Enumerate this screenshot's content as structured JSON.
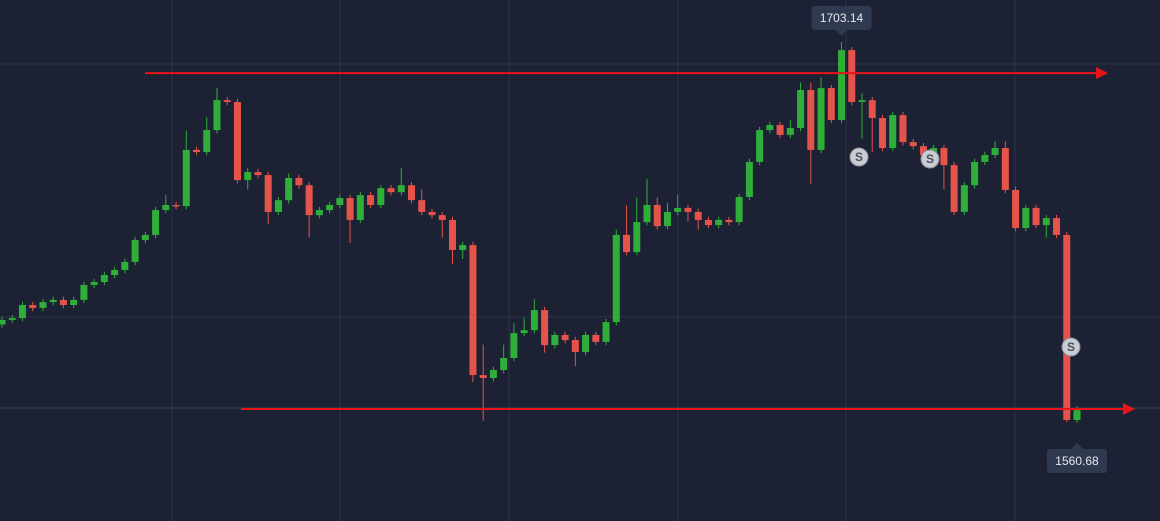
{
  "chart_data": {
    "type": "candlestick",
    "open": [
      1597.5,
      1599.2,
      1599.9,
      1604.8,
      1603.7,
      1605.9,
      1606.7,
      1604.8,
      1606.7,
      1612.3,
      1613.4,
      1616.0,
      1617.9,
      1620.9,
      1629.1,
      1631.0,
      1640.3,
      1642.2,
      1641.8,
      1662.8,
      1662.0,
      1670.2,
      1681.4,
      1680.7,
      1651.5,
      1654.5,
      1653.4,
      1639.6,
      1644.0,
      1652.3,
      1649.6,
      1638.4,
      1640.3,
      1642.2,
      1644.8,
      1636.6,
      1645.9,
      1642.2,
      1648.5,
      1647.0,
      1649.6,
      1644.0,
      1639.6,
      1638.4,
      1636.6,
      1625.4,
      1627.2,
      1578.6,
      1577.5,
      1580.5,
      1585.0,
      1594.3,
      1595.4,
      1602.9,
      1589.8,
      1593.6,
      1591.7,
      1587.2,
      1593.6,
      1591.0,
      1598.4,
      1631.0,
      1624.6,
      1635.8,
      1642.2,
      1634.3,
      1639.6,
      1641.1,
      1639.6,
      1636.6,
      1634.7,
      1636.6,
      1635.8,
      1645.2,
      1658.3,
      1670.2,
      1672.1,
      1668.4,
      1671.0,
      1685.2,
      1662.8,
      1685.9,
      1674.0,
      1700.1,
      1680.7,
      1681.4,
      1674.7,
      1663.5,
      1675.8,
      1665.7,
      1664.2,
      1660.9,
      1663.5,
      1657.1,
      1639.6,
      1649.6,
      1658.3,
      1660.9,
      1663.5,
      1647.8,
      1633.6,
      1641.1,
      1634.7,
      1637.3,
      1631.0,
      1561.8
    ],
    "high": [
      1600.4,
      1601.1,
      1606.0,
      1606.0,
      1607.1,
      1607.9,
      1607.9,
      1607.9,
      1613.5,
      1614.6,
      1617.2,
      1619.1,
      1622.1,
      1630.3,
      1632.2,
      1641.5,
      1646.0,
      1643.4,
      1670.0,
      1664.0,
      1675.0,
      1686.0,
      1682.6,
      1681.9,
      1656.0,
      1655.7,
      1654.6,
      1645.2,
      1654.0,
      1653.5,
      1650.8,
      1641.5,
      1643.4,
      1646.0,
      1646.0,
      1647.1,
      1647.1,
      1649.7,
      1649.7,
      1656.0,
      1650.8,
      1648.0,
      1640.8,
      1639.6,
      1637.8,
      1628.4,
      1628.4,
      1590.0,
      1581.7,
      1590.0,
      1598.0,
      1600.0,
      1607.0,
      1604.1,
      1594.8,
      1594.8,
      1592.9,
      1594.8,
      1594.8,
      1599.6,
      1633.0,
      1642.0,
      1645.0,
      1652.0,
      1645.0,
      1643.0,
      1646.0,
      1642.3,
      1640.8,
      1637.8,
      1637.8,
      1637.8,
      1646.4,
      1659.5,
      1671.4,
      1673.3,
      1673.3,
      1674.0,
      1688.0,
      1688.0,
      1690.0,
      1687.1,
      1703.14,
      1701.3,
      1684.0,
      1682.6,
      1675.9,
      1677.0,
      1677.0,
      1666.9,
      1665.4,
      1664.7,
      1664.7,
      1658.3,
      1650.8,
      1659.5,
      1662.1,
      1666.0,
      1666.0,
      1649.0,
      1642.3,
      1642.3,
      1638.5,
      1638.5,
      1632.2,
      1567.0
    ],
    "low": [
      1596.3,
      1598.0,
      1598.7,
      1602.5,
      1602.5,
      1604.7,
      1603.6,
      1603.6,
      1605.5,
      1611.1,
      1612.2,
      1614.8,
      1616.7,
      1619.7,
      1627.9,
      1629.8,
      1639.1,
      1640.6,
      1640.6,
      1660.8,
      1660.8,
      1669.0,
      1679.5,
      1650.3,
      1648.0,
      1652.2,
      1635.0,
      1638.4,
      1642.8,
      1648.4,
      1630.0,
      1637.2,
      1639.1,
      1641.0,
      1628.0,
      1635.4,
      1641.0,
      1641.0,
      1645.8,
      1645.8,
      1642.8,
      1638.4,
      1637.2,
      1630.0,
      1620.0,
      1622.0,
      1576.0,
      1561.5,
      1576.3,
      1579.3,
      1583.8,
      1593.1,
      1594.2,
      1587.0,
      1588.6,
      1590.5,
      1582.0,
      1586.0,
      1589.8,
      1589.8,
      1597.2,
      1623.4,
      1623.4,
      1634.6,
      1633.1,
      1633.1,
      1638.4,
      1636.0,
      1633.0,
      1633.5,
      1633.5,
      1634.6,
      1634.6,
      1644.0,
      1657.1,
      1669.0,
      1667.2,
      1667.2,
      1669.8,
      1650.0,
      1661.6,
      1672.8,
      1672.8,
      1679.5,
      1667.0,
      1662.0,
      1662.3,
      1662.3,
      1664.5,
      1663.0,
      1659.7,
      1659.7,
      1648.0,
      1638.4,
      1638.4,
      1648.4,
      1657.1,
      1659.7,
      1646.6,
      1632.4,
      1632.4,
      1633.5,
      1630.0,
      1629.8,
      1561.0,
      1560.68
    ],
    "close": [
      1599.2,
      1599.9,
      1604.8,
      1603.7,
      1605.9,
      1606.7,
      1604.8,
      1606.7,
      1612.3,
      1613.4,
      1616.0,
      1617.9,
      1620.9,
      1629.1,
      1631.0,
      1640.3,
      1642.2,
      1641.8,
      1662.8,
      1662.0,
      1670.2,
      1681.4,
      1680.7,
      1651.5,
      1654.5,
      1653.4,
      1639.6,
      1644.0,
      1652.3,
      1649.6,
      1638.4,
      1640.3,
      1642.2,
      1644.8,
      1636.6,
      1645.9,
      1642.2,
      1648.5,
      1647.0,
      1649.6,
      1644.0,
      1639.6,
      1638.4,
      1636.6,
      1625.4,
      1627.2,
      1578.6,
      1577.5,
      1580.5,
      1585.0,
      1594.3,
      1595.4,
      1602.9,
      1589.8,
      1593.6,
      1591.7,
      1587.2,
      1593.6,
      1591.0,
      1598.4,
      1631.0,
      1624.6,
      1635.8,
      1642.2,
      1634.3,
      1639.6,
      1641.1,
      1639.6,
      1636.6,
      1634.7,
      1636.6,
      1635.8,
      1645.2,
      1658.3,
      1670.2,
      1672.1,
      1668.4,
      1671.0,
      1685.2,
      1662.8,
      1685.9,
      1674.0,
      1700.1,
      1680.7,
      1681.4,
      1674.7,
      1663.5,
      1675.8,
      1665.7,
      1664.2,
      1660.9,
      1663.5,
      1657.1,
      1639.6,
      1649.6,
      1658.3,
      1660.9,
      1663.5,
      1647.8,
      1633.6,
      1641.1,
      1634.7,
      1637.3,
      1631.0,
      1561.8,
      1565.5
    ],
    "up_color": "#2fae3a",
    "down_color": "#e5534b",
    "levels": [
      1691.5,
      1565.9
    ],
    "level_color": "#e8141a",
    "markers": [
      "S",
      "S",
      "S"
    ]
  }
}
